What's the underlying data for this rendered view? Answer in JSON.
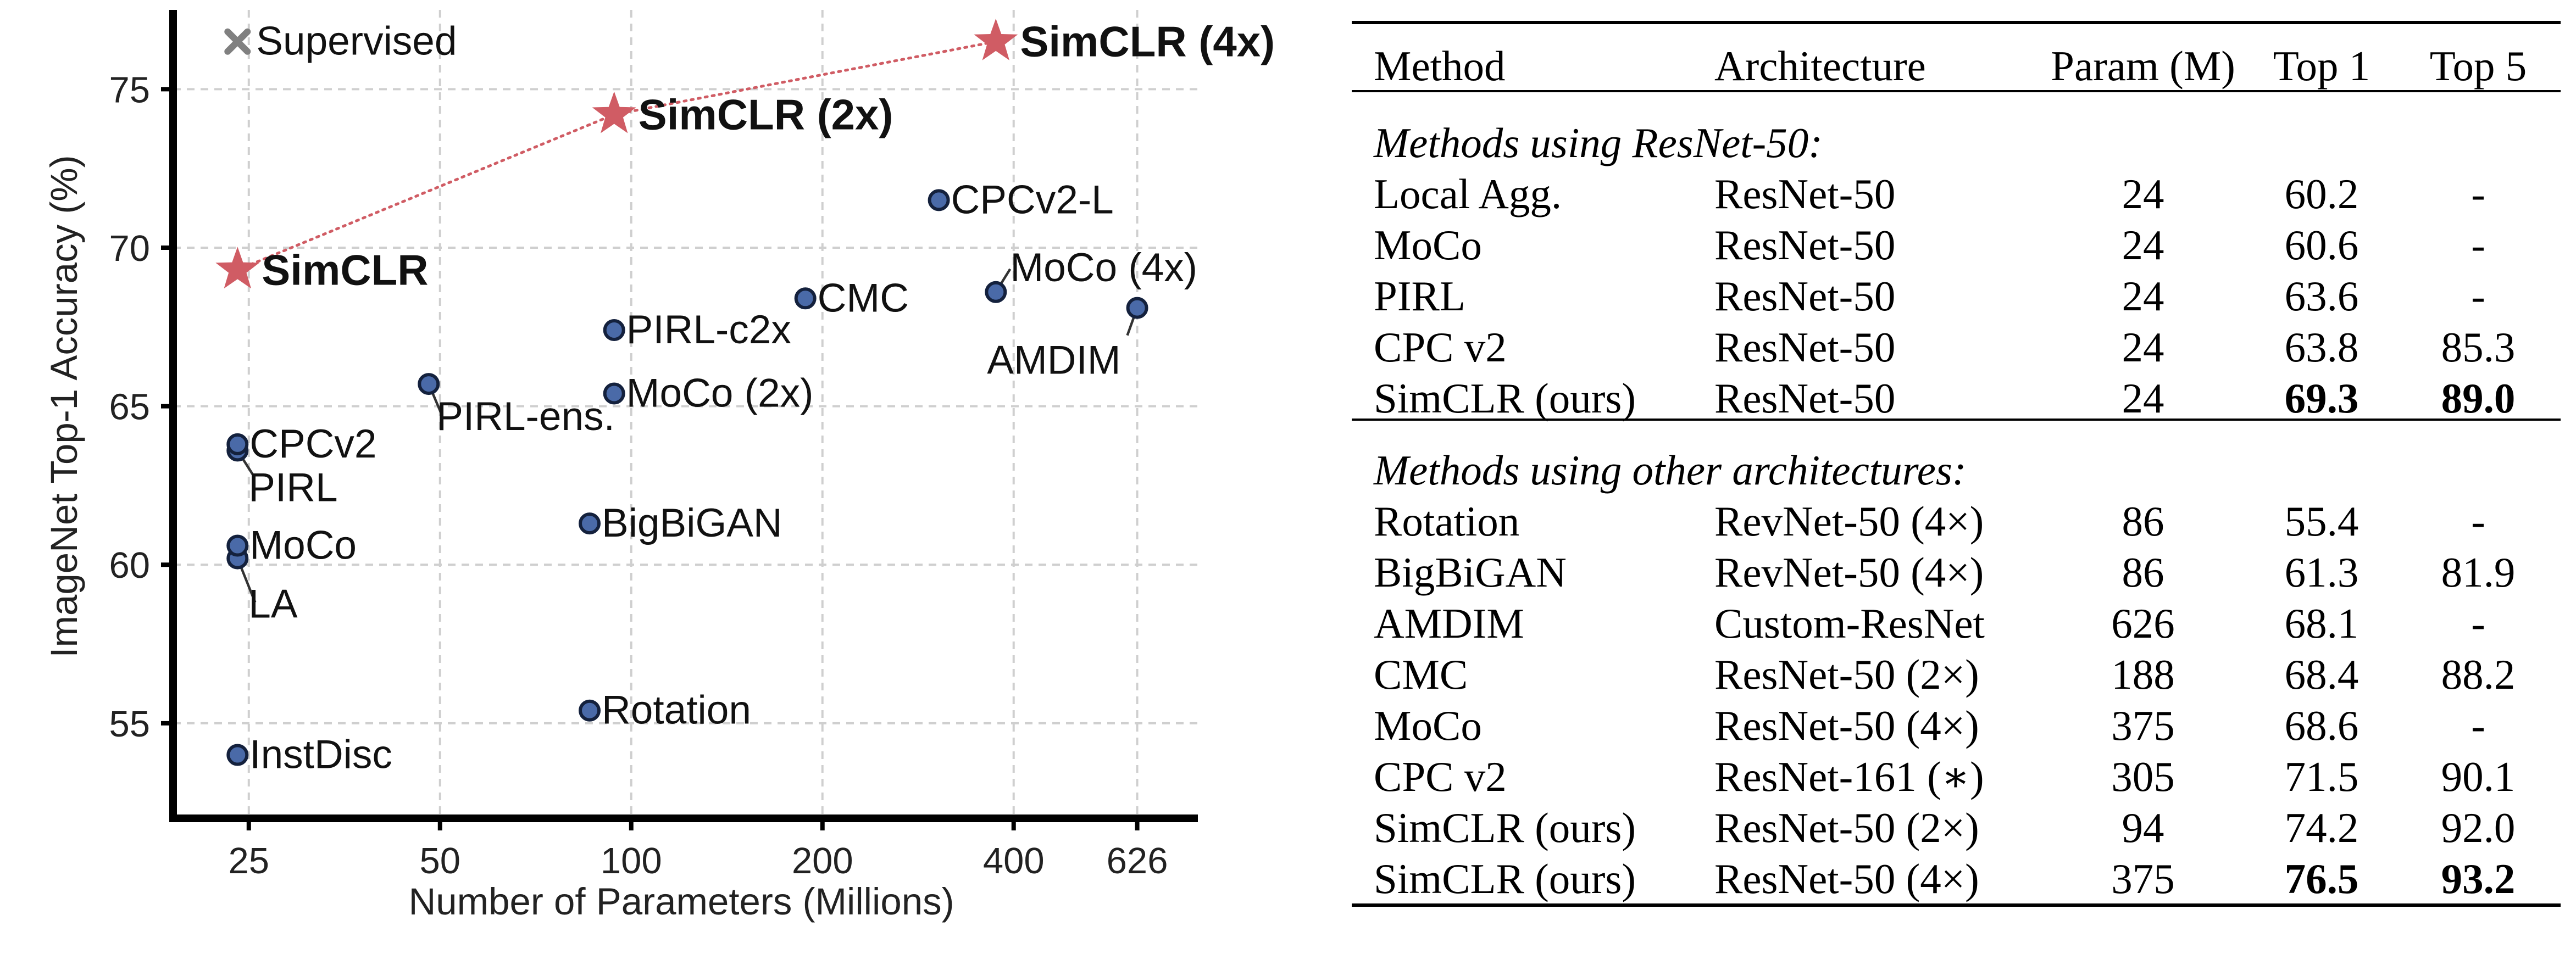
{
  "chart_data": {
    "type": "scatter",
    "xlabel": "Number of Parameters (Millions)",
    "ylabel": "ImageNet Top-1 Accuracy (%)",
    "x_scale": "log",
    "x_ticks": [
      25,
      50,
      100,
      200,
      400,
      626
    ],
    "y_ticks": [
      55,
      60,
      65,
      70,
      75
    ],
    "xlim": [
      19,
      780
    ],
    "ylim": [
      52,
      77.5
    ],
    "grid": true,
    "legend": {
      "label": "Supervised",
      "marker": "x",
      "color": "#808080",
      "position": "top-left"
    },
    "points": [
      {
        "label": "InstDisc",
        "x": 24,
        "y": 54.0
      },
      {
        "label": "LA",
        "x": 24,
        "y": 60.2
      },
      {
        "label": "MoCo",
        "x": 24,
        "y": 60.6
      },
      {
        "label": "PIRL",
        "x": 24,
        "y": 63.6
      },
      {
        "label": "CPCv2",
        "x": 24,
        "y": 63.8
      },
      {
        "label": "PIRL-ens.",
        "x": 48,
        "y": 65.7
      },
      {
        "label": "Rotation",
        "x": 86,
        "y": 55.4
      },
      {
        "label": "BigBiGAN",
        "x": 86,
        "y": 61.3
      },
      {
        "label": "MoCo (2x)",
        "x": 94,
        "y": 65.4
      },
      {
        "label": "PIRL-c2x",
        "x": 94,
        "y": 67.4
      },
      {
        "label": "CMC",
        "x": 188,
        "y": 68.4
      },
      {
        "label": "CPCv2-L",
        "x": 305,
        "y": 71.5
      },
      {
        "label": "MoCo (4x)",
        "x": 375,
        "y": 68.6
      },
      {
        "label": "AMDIM",
        "x": 626,
        "y": 68.1
      }
    ],
    "simclr": [
      {
        "label": "SimCLR",
        "x": 24,
        "y": 69.3
      },
      {
        "label": "SimCLR (2x)",
        "x": 94,
        "y": 74.2
      },
      {
        "label": "SimCLR (4x)",
        "x": 375,
        "y": 76.5
      }
    ],
    "colors": {
      "points": "#4a6aa8",
      "simclr": "#d05c64",
      "supervised": "#808080"
    }
  },
  "table": {
    "columns": [
      "Method",
      "Architecture",
      "Param (M)",
      "Top 1",
      "Top 5"
    ],
    "sections": [
      {
        "title": "Methods using ResNet-50:",
        "rows": [
          {
            "method": "Local Agg.",
            "arch": "ResNet-50",
            "param": "24",
            "top1": "60.2",
            "top5": "-"
          },
          {
            "method": "MoCo",
            "arch": "ResNet-50",
            "param": "24",
            "top1": "60.6",
            "top5": "-"
          },
          {
            "method": "PIRL",
            "arch": "ResNet-50",
            "param": "24",
            "top1": "63.6",
            "top5": "-"
          },
          {
            "method": "CPC v2",
            "arch": "ResNet-50",
            "param": "24",
            "top1": "63.8",
            "top5": "85.3"
          },
          {
            "method": "SimCLR (ours)",
            "arch": "ResNet-50",
            "param": "24",
            "top1": "69.3",
            "top5": "89.0",
            "bold": true
          }
        ]
      },
      {
        "title": "Methods using other architectures:",
        "rows": [
          {
            "method": "Rotation",
            "arch": "RevNet-50 (4×)",
            "param": "86",
            "top1": "55.4",
            "top5": "-"
          },
          {
            "method": "BigBiGAN",
            "arch": "RevNet-50 (4×)",
            "param": "86",
            "top1": "61.3",
            "top5": "81.9"
          },
          {
            "method": "AMDIM",
            "arch": "Custom-ResNet",
            "param": "626",
            "top1": "68.1",
            "top5": "-"
          },
          {
            "method": "CMC",
            "arch": "ResNet-50 (2×)",
            "param": "188",
            "top1": "68.4",
            "top5": "88.2"
          },
          {
            "method": "MoCo",
            "arch": "ResNet-50 (4×)",
            "param": "375",
            "top1": "68.6",
            "top5": "-"
          },
          {
            "method": "CPC v2",
            "arch": "ResNet-161 (∗)",
            "param": "305",
            "top1": "71.5",
            "top5": "90.1"
          },
          {
            "method": "SimCLR (ours)",
            "arch": "ResNet-50 (2×)",
            "param": "94",
            "top1": "74.2",
            "top5": "92.0"
          },
          {
            "method": "SimCLR (ours)",
            "arch": "ResNet-50 (4×)",
            "param": "375",
            "top1": "76.5",
            "top5": "93.2",
            "bold": true
          }
        ]
      }
    ]
  }
}
